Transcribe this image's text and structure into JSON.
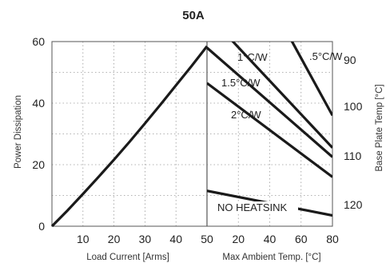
{
  "chart_data": {
    "type": "line",
    "title": "50A",
    "left_panel": {
      "xlabel": "Load Current  [Arms]",
      "ylabel": "Power Dissipation",
      "xlim": [
        0,
        50
      ],
      "ylim": [
        0,
        60
      ],
      "xticks": [
        "10",
        "20",
        "30",
        "40",
        "50"
      ],
      "yticks": [
        "0",
        "20",
        "40",
        "60"
      ],
      "series": [
        {
          "x": [
            0,
            5,
            10,
            15,
            20,
            25,
            30,
            35,
            40,
            45,
            50
          ],
          "y": [
            0,
            5.1,
            10.5,
            16,
            21.6,
            27.4,
            33.4,
            39.5,
            45.8,
            52,
            58.5
          ]
        }
      ]
    },
    "right_panel": {
      "xlabel": "Max Ambient Temp. [°C]",
      "ylabel": "Base Plate Temp [°C]",
      "xlim": [
        0,
        80
      ],
      "xticks": [
        "20",
        "40",
        "60",
        "80"
      ],
      "right_yticks": [
        "90",
        "100",
        "110",
        "120"
      ],
      "series": [
        {
          "name": ".5°C/W",
          "x": [
            51,
            80
          ],
          "y": [
            63,
            36
          ]
        },
        {
          "name": "1°C/W",
          "x": [
            11,
            80
          ],
          "y": [
            63,
            25.5
          ]
        },
        {
          "name": "1.5°C/W",
          "x": [
            0,
            80
          ],
          "y": [
            58,
            22.5
          ]
        },
        {
          "name": "2°C/W",
          "x": [
            0,
            80
          ],
          "y": [
            46.5,
            16
          ]
        },
        {
          "name": "NO HEATSINK",
          "x": [
            0,
            80
          ],
          "y": [
            11.5,
            3.5
          ]
        }
      ]
    }
  }
}
